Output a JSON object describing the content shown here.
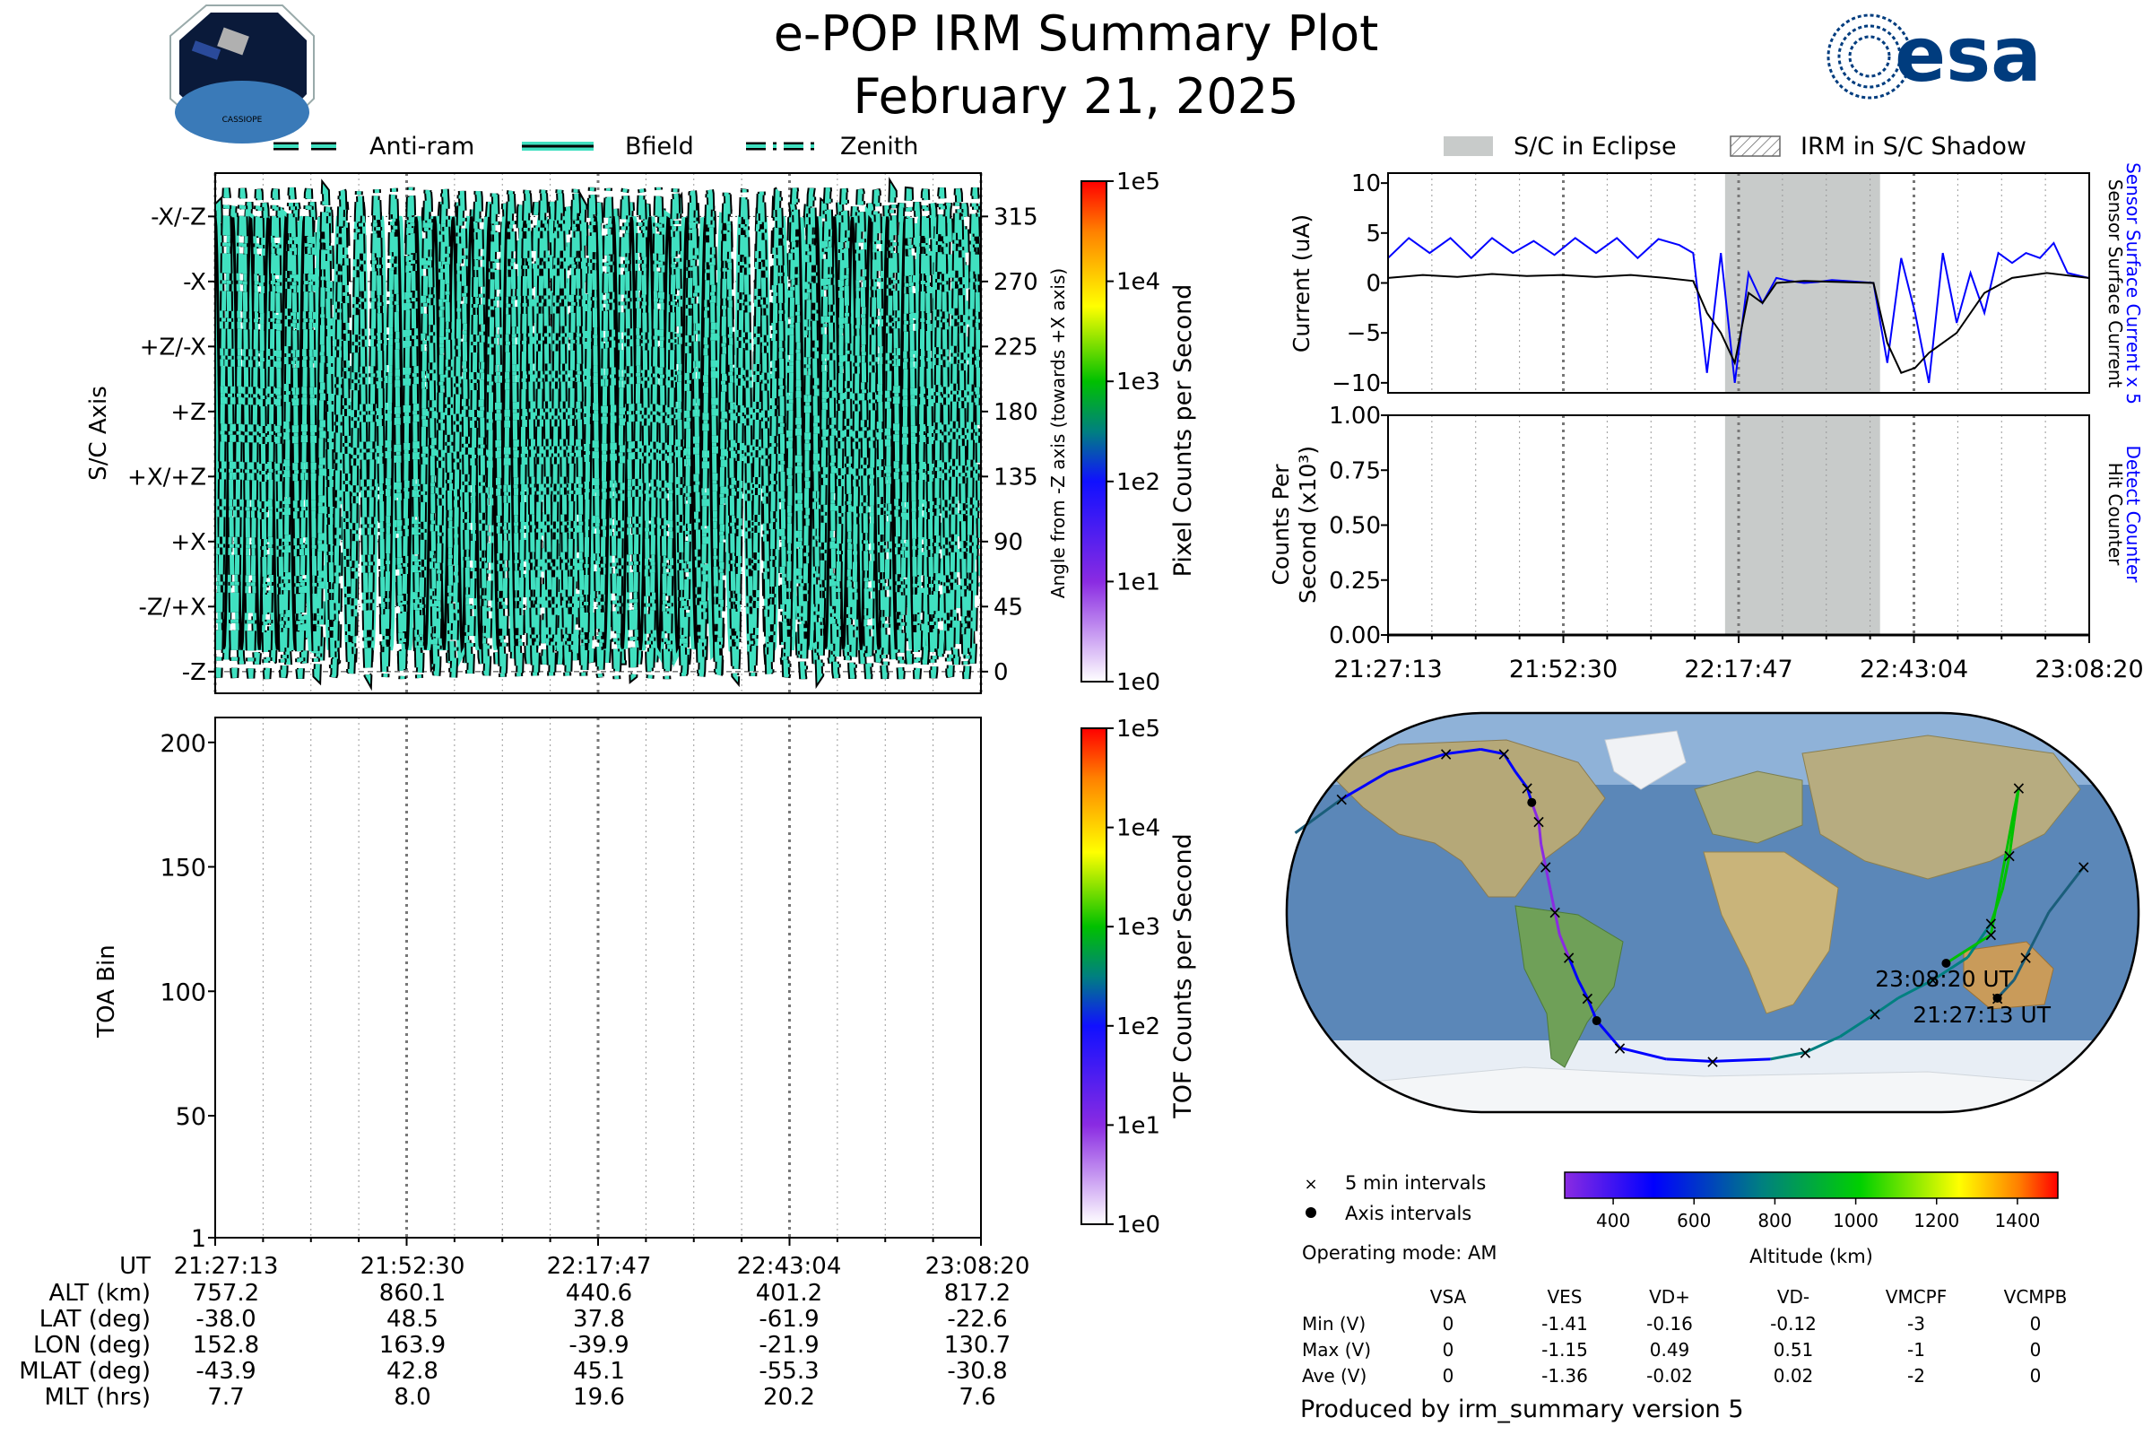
{
  "header": {
    "title": "e-POP IRM Summary Plot",
    "date": "February 21, 2025",
    "mission_logo_label": "CASSIOPE",
    "agency_logo_text": "esa",
    "agency_logo_color": "#003c7e"
  },
  "colors": {
    "angle_curve_fill": "#40e0c0",
    "current_black": "#000000",
    "current_blue": "#0000ff",
    "eclipse_gray": "#c8cbca",
    "time_grid_dark": "#777777"
  },
  "angle_panel": {
    "legend": [
      "Anti-ram",
      "Bfield",
      "Zenith"
    ],
    "left_axis_label": "S/C Axis",
    "left_ticks": [
      "-X/-Z",
      "-X",
      "+Z/-X",
      "+Z",
      "+X/+Z",
      "+X",
      "-Z/+X",
      "-Z"
    ],
    "right_axis_label": "Angle from -Z axis (towards +X axis)",
    "right_ticks": [
      "315",
      "270",
      "225",
      "180",
      "135",
      "90",
      "45",
      "0"
    ],
    "colorbar_label": "Pixel Counts per Second",
    "colorbar_ticks": [
      "1e5",
      "1e4",
      "1e3",
      "1e2",
      "1e1",
      "1e0"
    ]
  },
  "toa_panel": {
    "y_label": "TOA Bin",
    "y_ticks": [
      "200",
      "150",
      "100",
      "50",
      "1"
    ],
    "colorbar_label": "TOF Counts per Second",
    "colorbar_ticks": [
      "1e5",
      "1e4",
      "1e3",
      "1e2",
      "1e1",
      "1e0"
    ]
  },
  "ephemeris_table": {
    "row_labels": [
      "UT",
      "ALT (km)",
      "LAT (deg)",
      "LON (deg)",
      "MLAT (deg)",
      "MLT (hrs)"
    ],
    "columns": [
      [
        "21:27:13",
        "757.2",
        "-38.0",
        "152.8",
        "-43.9",
        "7.7"
      ],
      [
        "21:52:30",
        "860.1",
        "48.5",
        "163.9",
        "42.8",
        "8.0"
      ],
      [
        "22:17:47",
        "440.6",
        "37.8",
        "-39.9",
        "45.1",
        "19.6"
      ],
      [
        "22:43:04",
        "401.2",
        "-61.9",
        "-21.9",
        "-55.3",
        "20.2"
      ],
      [
        "23:08:20",
        "817.2",
        "-22.6",
        "130.7",
        "-30.8",
        "7.6"
      ]
    ]
  },
  "right_legend": {
    "eclipse_label": "S/C in Eclipse",
    "shadow_label": "IRM in S/C Shadow"
  },
  "current_panel": {
    "y_label": "Current (uA)",
    "y_ticks": [
      "10",
      "5",
      "0",
      "−5",
      "−10"
    ],
    "right_label_blue": "Sensor Surface Current x 5",
    "right_label_black": "Sensor Surface Current"
  },
  "counts_panel": {
    "y_label_line1": "Counts Per",
    "y_label_line2": "Second (x10³)",
    "y_ticks": [
      "1.00",
      "0.75",
      "0.50",
      "0.25",
      "0.00"
    ],
    "right_label_blue": "Detect Counter",
    "right_label_black": "Hit Counter",
    "x_ticks": [
      "21:27:13",
      "21:52:30",
      "22:17:47",
      "22:43:04",
      "23:08:20"
    ]
  },
  "map_panel": {
    "start_label": "21:27:13 UT",
    "end_label": "23:08:20 UT",
    "legend_5min": "5 min intervals",
    "legend_axis": "Axis intervals",
    "operating_mode": "Operating mode: AM",
    "altitude_label": "Altitude (km)",
    "altitude_ticks": [
      "400",
      "600",
      "800",
      "1000",
      "1200",
      "1400"
    ]
  },
  "voltage_table": {
    "headers": [
      "VSA",
      "VES",
      "VD+",
      "VD-",
      "VMCPF",
      "VCMPB"
    ],
    "rows": [
      {
        "label": "Min (V)",
        "values": [
          "0",
          "-1.41",
          "-0.16",
          "-0.12",
          "-3",
          "0"
        ]
      },
      {
        "label": "Max (V)",
        "values": [
          "0",
          "-1.15",
          "0.49",
          "0.51",
          "-1",
          "0"
        ]
      },
      {
        "label": "Ave (V)",
        "values": [
          "0",
          "-1.36",
          "-0.02",
          "0.02",
          "-2",
          "0"
        ]
      }
    ]
  },
  "footer": "Produced by irm_summary version 5",
  "chart_data": [
    {
      "type": "line",
      "panel": "angle",
      "x_range": [
        "21:27:13",
        "23:08:20"
      ],
      "ylim": [
        -15,
        345
      ],
      "series": [
        {
          "name": "Anti-ram",
          "style": "dashed",
          "phase_deg": 20,
          "amp_deg": 160,
          "period_min": 2.1
        },
        {
          "name": "Bfield",
          "style": "solid",
          "phase_deg": 90,
          "amp_deg": 150,
          "period_min": 2.4
        },
        {
          "name": "Zenith",
          "style": "dash-dot",
          "phase_deg": 200,
          "amp_deg": 170,
          "period_min": 2.2
        }
      ]
    },
    {
      "type": "heatmap",
      "panel": "toa",
      "ylim": [
        1,
        210
      ],
      "values": []
    },
    {
      "type": "line",
      "panel": "current",
      "ylim": [
        -11,
        11
      ],
      "eclipse_range": [
        "22:15:50",
        "22:38:10"
      ],
      "series": [
        {
          "name": "Sensor Surface Current x 5",
          "color": "#0000ff",
          "x_min": [
            0,
            3,
            6,
            9,
            12,
            15,
            18,
            21,
            24,
            27,
            30,
            33,
            36,
            39,
            42,
            44,
            46,
            48,
            50,
            52,
            54,
            56,
            58,
            60,
            62,
            64,
            66,
            68,
            70,
            72,
            74,
            76,
            78,
            80,
            82,
            84,
            86,
            88,
            90,
            92,
            94,
            96,
            98,
            101
          ],
          "y": [
            2.5,
            4.5,
            3.0,
            4.5,
            2.5,
            4.5,
            3.0,
            4.2,
            2.8,
            4.5,
            3.0,
            4.5,
            2.5,
            4.4,
            3.8,
            3.0,
            -9.0,
            3.0,
            -10.0,
            1.0,
            -2.0,
            0.5,
            0.2,
            0.0,
            0.1,
            0.3,
            0.2,
            0.1,
            0.0,
            -8.0,
            2.5,
            -3.0,
            -10.0,
            3.0,
            -4.0,
            1.0,
            -3.0,
            3.0,
            2.0,
            3.0,
            2.5,
            4.0,
            1.0,
            0.5
          ]
        },
        {
          "name": "Sensor Surface Current",
          "color": "#000000",
          "x_min": [
            0,
            5,
            10,
            15,
            20,
            25,
            30,
            35,
            40,
            44,
            46,
            48,
            50,
            52,
            54,
            56,
            60,
            65,
            70,
            72,
            74,
            76,
            78,
            80,
            82,
            86,
            90,
            95,
            101
          ],
          "y": [
            0.5,
            0.8,
            0.6,
            0.9,
            0.7,
            0.8,
            0.6,
            0.8,
            0.5,
            0.2,
            -3.0,
            -5.0,
            -8.0,
            -1.0,
            -2.0,
            0.0,
            0.2,
            0.1,
            0.0,
            -6.0,
            -9.0,
            -8.5,
            -7.0,
            -6.0,
            -5.0,
            -1.0,
            0.5,
            1.0,
            0.5
          ]
        }
      ]
    },
    {
      "type": "line",
      "panel": "counts",
      "ylim": [
        0,
        1
      ],
      "eclipse_range": [
        "22:15:50",
        "22:38:10"
      ],
      "series": [
        {
          "name": "Detect Counter",
          "color": "#0000ff",
          "x_min": [
            0,
            101
          ],
          "y": [
            0,
            0
          ]
        },
        {
          "name": "Hit Counter",
          "color": "#000000",
          "x_min": [
            0,
            101
          ],
          "y": [
            0,
            0
          ]
        }
      ]
    },
    {
      "type": "scatter",
      "panel": "ground_track",
      "note": "lon/lat in degrees",
      "lon": [
        152.8,
        160,
        165,
        175,
        -170,
        -150,
        -130,
        -110,
        -85,
        -70,
        -60,
        -55,
        -50,
        -48,
        -45,
        -44,
        -42,
        -40,
        -38,
        -36,
        -32,
        -28,
        -24,
        -20,
        -10,
        10,
        30,
        55,
        70,
        85,
        100,
        110,
        125,
        140,
        150,
        155,
        158,
        160,
        162,
        160,
        150,
        130.7
      ],
      "lat": [
        -38.0,
        -30,
        -20,
        0,
        20,
        35,
        50,
        62,
        70,
        72,
        70,
        62,
        55,
        48.5,
        40,
        30,
        20,
        10,
        0,
        -10,
        -20,
        -30,
        -38,
        -48,
        -60,
        -65,
        -66,
        -65,
        -62,
        -55,
        -45,
        -38,
        -30,
        -20,
        -5,
        10,
        25,
        40,
        55,
        45,
        -10,
        -22.6
      ]
    }
  ]
}
